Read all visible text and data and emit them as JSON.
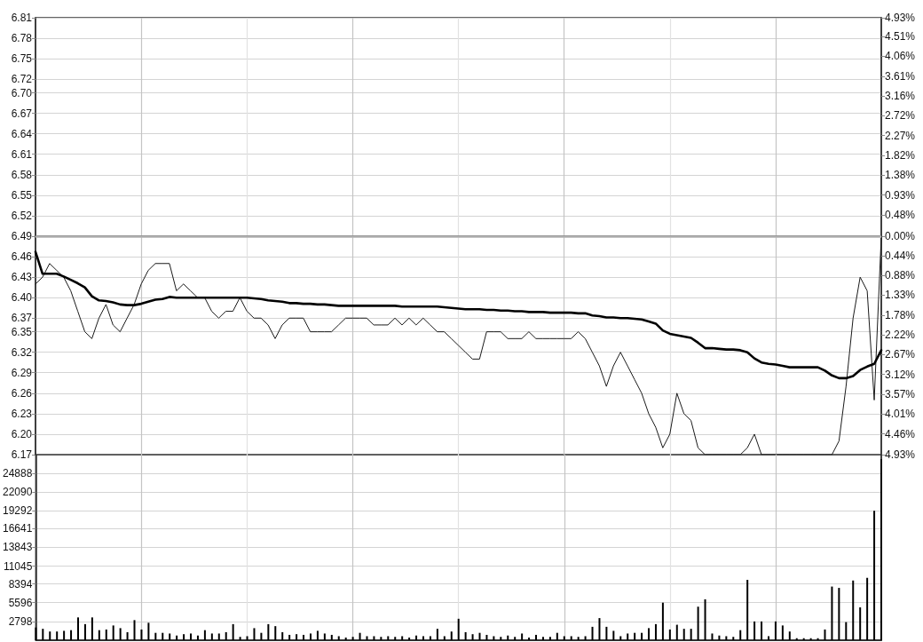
{
  "chart_data": [
    {
      "type": "line",
      "categories": [
        null,
        null,
        null,
        null,
        null,
        null,
        null,
        null,
        null,
        null,
        null,
        null,
        null,
        null,
        null,
        null,
        null,
        null,
        null,
        null,
        null,
        null,
        null,
        null,
        null,
        null,
        null,
        null,
        null,
        null,
        null,
        null,
        null,
        null,
        null,
        null,
        null,
        null,
        null,
        null,
        null,
        null,
        null,
        null,
        null,
        null,
        null,
        null,
        null,
        null,
        null,
        null,
        null,
        null,
        null,
        null,
        null,
        null,
        null,
        null,
        null,
        null,
        null,
        null,
        null,
        null,
        null,
        null,
        null,
        null,
        null,
        null,
        null,
        null,
        null,
        null,
        null,
        null,
        null,
        null,
        null,
        null,
        null,
        null,
        null,
        null,
        null,
        null,
        null,
        null,
        null,
        null,
        null,
        null,
        null,
        null,
        null,
        null,
        null,
        null,
        null,
        null,
        null,
        null,
        null,
        null,
        null,
        null,
        null,
        null,
        null,
        null,
        null,
        null,
        null,
        null,
        null,
        null,
        null,
        null,
        null
      ],
      "series": [
        {
          "color": "#1a1a1a",
          "values": [
            6.42,
            6.43,
            6.45,
            6.44,
            6.43,
            6.41,
            6.38,
            6.35,
            6.34,
            6.37,
            6.39,
            6.36,
            6.35,
            6.37,
            6.39,
            6.42,
            6.44,
            6.45,
            6.45,
            6.45,
            6.41,
            6.42,
            6.41,
            6.4,
            6.4,
            6.38,
            6.37,
            6.38,
            6.38,
            6.4,
            6.38,
            6.37,
            6.37,
            6.36,
            6.34,
            6.36,
            6.37,
            6.37,
            6.37,
            6.35,
            6.35,
            6.35,
            6.35,
            6.36,
            6.37,
            6.37,
            6.37,
            6.37,
            6.36,
            6.36,
            6.36,
            6.37,
            6.36,
            6.37,
            6.36,
            6.37,
            6.36,
            6.35,
            6.35,
            6.34,
            6.33,
            6.32,
            6.31,
            6.31,
            6.35,
            6.35,
            6.35,
            6.34,
            6.34,
            6.34,
            6.35,
            6.34,
            6.34,
            6.34,
            6.34,
            6.34,
            6.34,
            6.35,
            6.34,
            6.32,
            6.3,
            6.27,
            6.3,
            6.32,
            6.3,
            6.28,
            6.26,
            6.23,
            6.21,
            6.18,
            6.2,
            6.26,
            6.23,
            6.22,
            6.18,
            6.17,
            6.17,
            6.17,
            6.17,
            6.17,
            6.17,
            6.18,
            6.2,
            6.17,
            6.17,
            6.17,
            6.17,
            6.17,
            6.17,
            6.17,
            6.17,
            6.17,
            6.17,
            6.17,
            6.19,
            6.27,
            6.37,
            6.43,
            6.41,
            6.25,
            6.49
          ]
        },
        {
          "color": "#000000",
          "values": [
            6.467,
            6.435,
            6.435,
            6.435,
            6.431,
            6.426,
            6.421,
            6.415,
            6.402,
            6.396,
            6.395,
            6.393,
            6.39,
            6.389,
            6.389,
            6.391,
            6.394,
            6.397,
            6.398,
            6.401,
            6.4,
            6.4,
            6.4,
            6.4,
            6.4,
            6.4,
            6.4,
            6.4,
            6.4,
            6.4,
            6.4,
            6.399,
            6.398,
            6.396,
            6.395,
            6.394,
            6.392,
            6.392,
            6.391,
            6.391,
            6.39,
            6.39,
            6.389,
            6.388,
            6.388,
            6.388,
            6.388,
            6.388,
            6.388,
            6.388,
            6.388,
            6.388,
            6.387,
            6.387,
            6.387,
            6.387,
            6.387,
            6.387,
            6.386,
            6.385,
            6.384,
            6.383,
            6.383,
            6.383,
            6.382,
            6.382,
            6.381,
            6.381,
            6.38,
            6.38,
            6.379,
            6.379,
            6.379,
            6.378,
            6.378,
            6.378,
            6.378,
            6.377,
            6.377,
            6.374,
            6.373,
            6.371,
            6.371,
            6.37,
            6.37,
            6.369,
            6.368,
            6.365,
            6.362,
            6.352,
            6.347,
            6.345,
            6.343,
            6.341,
            6.334,
            6.326,
            6.326,
            6.325,
            6.324,
            6.324,
            6.323,
            6.32,
            6.311,
            6.305,
            6.303,
            6.302,
            6.3,
            6.298,
            6.298,
            6.298,
            6.298,
            6.298,
            6.293,
            6.286,
            6.282,
            6.282,
            6.285,
            6.294,
            6.299,
            6.303,
            6.323
          ]
        }
      ],
      "ylim": [
        6.17,
        6.81
      ],
      "yticks": [
        {
          "value": 6.17,
          "label": "6.17"
        },
        {
          "value": 6.2,
          "label": "6.20"
        },
        {
          "value": 6.23,
          "label": "6.23"
        },
        {
          "value": 6.26,
          "label": "6.26"
        },
        {
          "value": 6.29,
          "label": "6.29"
        },
        {
          "value": 6.32,
          "label": "6.32"
        },
        {
          "value": 6.35,
          "label": "6.35"
        },
        {
          "value": 6.37,
          "label": "6.37"
        },
        {
          "value": 6.4,
          "label": "6.40"
        },
        {
          "value": 6.43,
          "label": "6.43"
        },
        {
          "value": 6.46,
          "label": "6.46"
        },
        {
          "value": 6.49,
          "label": "6.49"
        },
        {
          "value": 6.52,
          "label": "6.52"
        },
        {
          "value": 6.55,
          "label": "6.55"
        },
        {
          "value": 6.58,
          "label": "6.58"
        },
        {
          "value": 6.61,
          "label": "6.61"
        },
        {
          "value": 6.64,
          "label": "6.64"
        },
        {
          "value": 6.67,
          "label": "6.67"
        },
        {
          "value": 6.7,
          "label": "6.70"
        },
        {
          "value": 6.72,
          "label": "6.72"
        },
        {
          "value": 6.75,
          "label": "6.75"
        },
        {
          "value": 6.78,
          "label": "6.78"
        },
        {
          "value": 6.81,
          "label": "6.81"
        }
      ],
      "y2lim": [
        -4.93,
        4.93
      ],
      "y2ticks": [
        {
          "value": -4.93,
          "label": "4.93%"
        },
        {
          "value": -4.46,
          "label": "4.46%"
        },
        {
          "value": -4.01,
          "label": "4.01%"
        },
        {
          "value": -3.57,
          "label": "3.57%"
        },
        {
          "value": -3.12,
          "label": "3.12%"
        },
        {
          "value": -2.67,
          "label": "2.67%"
        },
        {
          "value": -2.22,
          "label": "2.22%"
        },
        {
          "value": -1.78,
          "label": "1.78%"
        },
        {
          "value": -1.33,
          "label": "1.33%"
        },
        {
          "value": -0.88,
          "label": "0.88%"
        },
        {
          "value": -0.44,
          "label": "0.44%"
        },
        {
          "value": 0,
          "label": "0.00%"
        },
        {
          "value": 0.48,
          "label": "0.48%"
        },
        {
          "value": 0.93,
          "label": "0.93%"
        },
        {
          "value": 1.38,
          "label": "1.38%"
        },
        {
          "value": 1.82,
          "label": "1.82%"
        },
        {
          "value": 2.27,
          "label": "2.27%"
        },
        {
          "value": 2.72,
          "label": "2.72%"
        },
        {
          "value": 3.16,
          "label": "3.16%"
        },
        {
          "value": 3.61,
          "label": "3.61%"
        },
        {
          "value": 4.06,
          "label": "4.06%"
        },
        {
          "value": 4.51,
          "label": "4.51%"
        },
        {
          "value": 4.93,
          "label": "4.93%"
        }
      ],
      "ref_lines": [
        {
          "axis": "y",
          "value": 6.49,
          "color": "#b0b0b0"
        }
      ],
      "grid": true,
      "line_style": "solid",
      "tick_labels": "y"
    },
    {
      "type": "bar",
      "categories": [
        null,
        null,
        null,
        null,
        null,
        null,
        null,
        null,
        null,
        null,
        null,
        null,
        null,
        null,
        null,
        null,
        null,
        null,
        null,
        null,
        null,
        null,
        null,
        null,
        null,
        null,
        null,
        null,
        null,
        null,
        null,
        null,
        null,
        null,
        null,
        null,
        null,
        null,
        null,
        null,
        null,
        null,
        null,
        null,
        null,
        null,
        null,
        null,
        null,
        null,
        null,
        null,
        null,
        null,
        null,
        null,
        null,
        null,
        null,
        null,
        null,
        null,
        null,
        null,
        null,
        null,
        null,
        null,
        null,
        null,
        null,
        null,
        null,
        null,
        null,
        null,
        null,
        null,
        null,
        null,
        null,
        null,
        null,
        null,
        null,
        null,
        null,
        null,
        null,
        null,
        null,
        null,
        null,
        null,
        null,
        null,
        null,
        null,
        null,
        null,
        null,
        null,
        null,
        null,
        null,
        null,
        null,
        null,
        null,
        null,
        null,
        null,
        null,
        null,
        null,
        null,
        null,
        null,
        null,
        null,
        null
      ],
      "values": [
        1900,
        1700,
        1300,
        1300,
        1400,
        1500,
        3400,
        2400,
        3400,
        1500,
        1600,
        2200,
        1800,
        1200,
        3000,
        1600,
        2600,
        1100,
        1100,
        1000,
        700,
        900,
        1000,
        700,
        1500,
        1000,
        1000,
        1200,
        2400,
        500,
        600,
        1800,
        1100,
        2400,
        2100,
        1200,
        800,
        900,
        800,
        1000,
        1400,
        1000,
        800,
        600,
        400,
        500,
        1100,
        600,
        600,
        500,
        600,
        500,
        600,
        400,
        700,
        600,
        600,
        1700,
        600,
        1300,
        3200,
        1200,
        900,
        1100,
        800,
        600,
        500,
        700,
        500,
        1000,
        400,
        800,
        500,
        500,
        1100,
        600,
        600,
        500,
        600,
        2000,
        3300,
        2000,
        1400,
        600,
        1000,
        1100,
        1100,
        1800,
        2400,
        5600,
        1600,
        2300,
        1700,
        1700,
        5000,
        6100,
        1000,
        700,
        600,
        500,
        1500,
        9000,
        2800,
        2800,
        600,
        2800,
        2200,
        1300,
        300,
        300,
        300,
        300,
        1600,
        8000,
        7800,
        2700,
        8900,
        4900,
        9300,
        19300,
        27000
      ],
      "color": "#000000",
      "ylim": [
        0,
        27666
      ],
      "yticks": [
        2798,
        5596,
        8394,
        11045,
        13843,
        16641,
        19292,
        22090,
        24888
      ],
      "grid": true,
      "tick_labels": "y"
    }
  ]
}
